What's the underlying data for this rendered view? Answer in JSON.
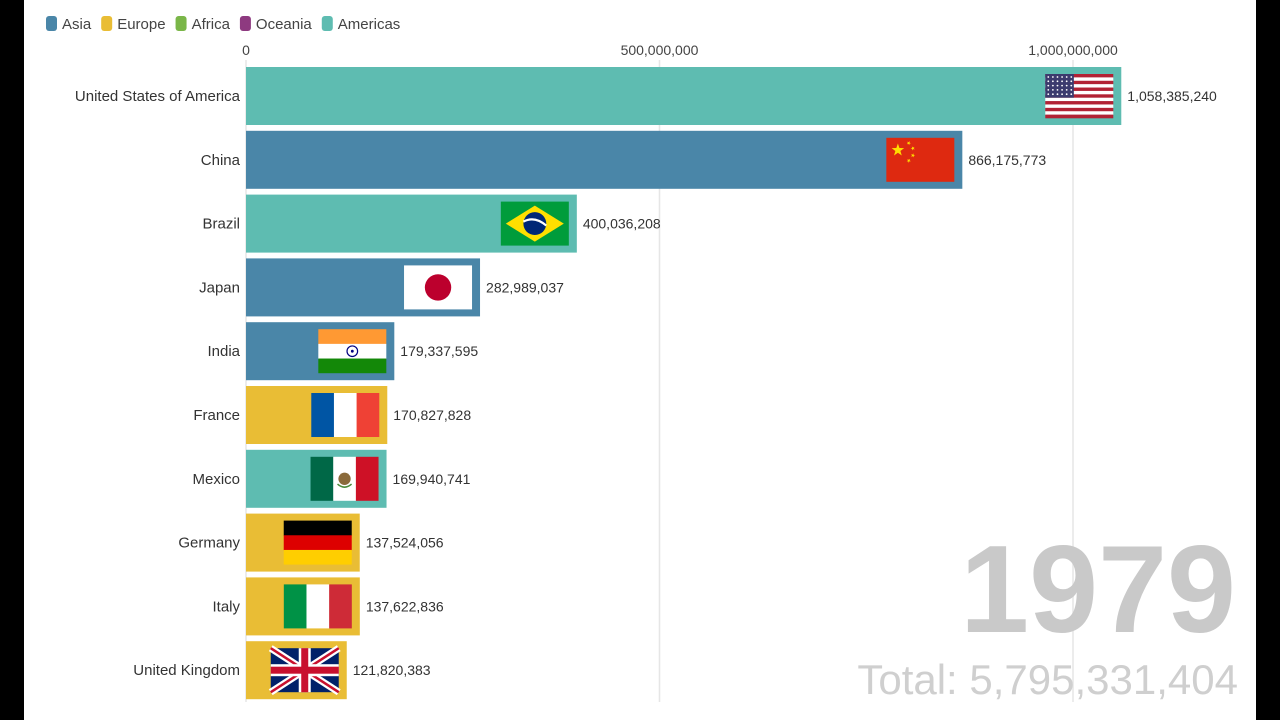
{
  "chart_data": {
    "type": "bar",
    "orientation": "horizontal",
    "title": "",
    "xlabel": "",
    "ylabel": "",
    "xlim": [
      0,
      1065000000
    ],
    "x_ticks": [
      {
        "value": 0,
        "label": "0"
      },
      {
        "value": 500000000,
        "label": "500,000,000"
      },
      {
        "value": 1000000000,
        "label": "1,000,000,000"
      }
    ],
    "grid": true,
    "legend_position": "top-left",
    "legend": [
      {
        "name": "Asia",
        "color": "#4a86a8"
      },
      {
        "name": "Europe",
        "color": "#e9bd35"
      },
      {
        "name": "Africa",
        "color": "#7ab648"
      },
      {
        "name": "Oceania",
        "color": "#8e3a80"
      },
      {
        "name": "Americas",
        "color": "#5ebcb1"
      }
    ],
    "bars": [
      {
        "category": "United States of America",
        "value": 1058385240,
        "label": "1,058,385,240",
        "region": "Americas",
        "flag": "usa-flag-icon"
      },
      {
        "category": "China",
        "value": 866175773,
        "label": "866,175,773",
        "region": "Asia",
        "flag": "china-flag-icon"
      },
      {
        "category": "Brazil",
        "value": 400036208,
        "label": "400,036,208",
        "region": "Americas",
        "flag": "brazil-flag-icon"
      },
      {
        "category": "Japan",
        "value": 282989037,
        "label": "282,989,037",
        "region": "Asia",
        "flag": "japan-flag-icon"
      },
      {
        "category": "India",
        "value": 179337595,
        "label": "179,337,595",
        "region": "Asia",
        "flag": "india-flag-icon"
      },
      {
        "category": "France",
        "value": 170827828,
        "label": "170,827,828",
        "region": "Europe",
        "flag": "france-flag-icon"
      },
      {
        "category": "Mexico",
        "value": 169940741,
        "label": "169,940,741",
        "region": "Americas",
        "flag": "mexico-flag-icon"
      },
      {
        "category": "Germany",
        "value": 137524056,
        "label": "137,524,056",
        "region": "Europe",
        "flag": "germany-flag-icon"
      },
      {
        "category": "Italy",
        "value": 137622836,
        "label": "137,622,836",
        "region": "Europe",
        "flag": "italy-flag-icon"
      },
      {
        "category": "United Kingdom",
        "value": 121820383,
        "label": "121,820,383",
        "region": "Europe",
        "flag": "uk-flag-icon"
      }
    ],
    "year": "1979",
    "total": "Total: 5,795,331,404"
  }
}
